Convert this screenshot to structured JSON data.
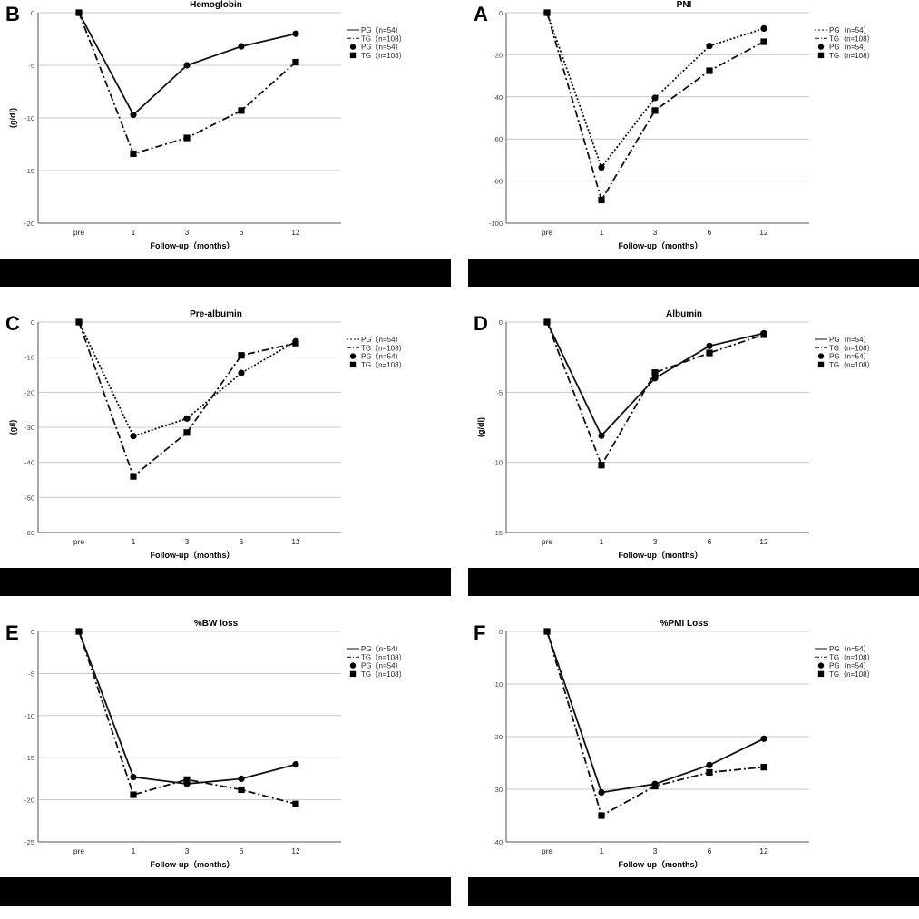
{
  "chart_data": [
    {
      "panel": "B",
      "type": "line",
      "title": "Hemoglobin",
      "xlabel": "Follow-up（months）",
      "ylabel": "(g/dl)",
      "categories": [
        "pre",
        "1",
        "3",
        "6",
        "12"
      ],
      "yticks": [
        0,
        -5,
        -10,
        -15,
        -20
      ],
      "ylim": [
        -20,
        0
      ],
      "legend": [
        "PG（n=54）",
        "TG（n=108）",
        "PG（n=54）",
        "TG（n=108）"
      ],
      "pg_style": "solid",
      "series": [
        {
          "name": "PG（n=54）",
          "values": [
            0,
            -9.7,
            -5.0,
            -3.2,
            -2.0
          ]
        },
        {
          "name": "TG（n=108）",
          "values": [
            0,
            -13.4,
            -11.9,
            -9.3,
            -4.7
          ]
        }
      ]
    },
    {
      "panel": "A",
      "type": "line",
      "title": "PNI",
      "xlabel": "Follow-up（months）",
      "ylabel": "",
      "categories": [
        "pre",
        "1",
        "3",
        "6",
        "12"
      ],
      "yticks": [
        0,
        -20,
        -40,
        -60,
        -80,
        -100
      ],
      "ylim": [
        -100,
        0
      ],
      "legend": [
        "PG（n=54）",
        "TG（n=108）",
        "PG（n=54）",
        "TG（n=108）"
      ],
      "pg_style": "dotted",
      "series": [
        {
          "name": "PG（n=54）",
          "values": [
            0,
            -73.5,
            -40.5,
            -15.8,
            -7.5
          ]
        },
        {
          "name": "TG（n=108）",
          "values": [
            0,
            -89.0,
            -46.5,
            -27.6,
            -13.8
          ]
        }
      ]
    },
    {
      "panel": "C",
      "type": "line",
      "title": "Pre-albumin",
      "xlabel": "Follow-up（months）",
      "ylabel": "(g/l)",
      "categories": [
        "pre",
        "1",
        "3",
        "6",
        "12"
      ],
      "yticks": [
        0,
        -10,
        -20,
        -30,
        -40,
        -50,
        -60
      ],
      "ylim": [
        -60,
        0
      ],
      "legend": [
        "PG（n=54）",
        "TG（n=108）",
        "PG（n=54）",
        "TG（n=108）"
      ],
      "pg_style": "dotted",
      "series": [
        {
          "name": "PG（n=54）",
          "values": [
            0,
            -32.5,
            -27.5,
            -14.5,
            -5.5
          ]
        },
        {
          "name": "TG（n=108）",
          "values": [
            0,
            -44.0,
            -31.5,
            -9.5,
            -6.0
          ]
        }
      ]
    },
    {
      "panel": "D",
      "type": "line",
      "title": "Albumin",
      "xlabel": "Follow-up（months）",
      "ylabel": "(g/dl)",
      "categories": [
        "pre",
        "1",
        "3",
        "6",
        "12"
      ],
      "yticks": [
        0,
        -5,
        -10,
        -15
      ],
      "ylim": [
        -15,
        0
      ],
      "legend": [
        "PG（n=54）",
        "TG（n=108）",
        "PG（n=54）",
        "TG（n=108）"
      ],
      "pg_style": "solid",
      "series": [
        {
          "name": "PG（n=54）",
          "values": [
            0,
            -8.1,
            -4.0,
            -1.7,
            -0.8
          ]
        },
        {
          "name": "TG（n=108）",
          "values": [
            0,
            -10.2,
            -3.6,
            -2.2,
            -0.9
          ]
        }
      ]
    },
    {
      "panel": "E",
      "type": "line",
      "title": "%BW loss",
      "xlabel": "Follow-up（months）",
      "ylabel": "",
      "categories": [
        "pre",
        "1",
        "3",
        "6",
        "12"
      ],
      "yticks": [
        0,
        -5,
        -10,
        -15,
        -20,
        -25
      ],
      "ylim": [
        -25,
        0
      ],
      "legend": [
        "PG（n=54）",
        "TG（n=108）",
        "PG（n=54）",
        "TG（n=108）"
      ],
      "pg_style": "solid",
      "series": [
        {
          "name": "PG（n=54）",
          "values": [
            0,
            -17.3,
            -18.1,
            -17.5,
            -15.8
          ]
        },
        {
          "name": "TG（n=108）",
          "values": [
            0,
            -19.4,
            -17.6,
            -18.8,
            -20.5
          ]
        }
      ]
    },
    {
      "panel": "F",
      "type": "line",
      "title": "%PMI Loss",
      "xlabel": "Follow-up（months）",
      "ylabel": "",
      "categories": [
        "pre",
        "1",
        "3",
        "6",
        "12"
      ],
      "yticks": [
        0,
        -10,
        -20,
        -30,
        -40
      ],
      "ylim": [
        -40,
        0
      ],
      "legend": [
        "PG（n=54）",
        "TG（n=108）",
        "PG（n=54）",
        "TG（n=108）"
      ],
      "pg_style": "solid",
      "series": [
        {
          "name": "PG（n=54）",
          "values": [
            0,
            -30.6,
            -29.0,
            -25.4,
            -20.4
          ]
        },
        {
          "name": "TG（n=108）",
          "values": [
            0,
            -35.0,
            -29.4,
            -26.8,
            -25.8
          ]
        }
      ]
    }
  ]
}
